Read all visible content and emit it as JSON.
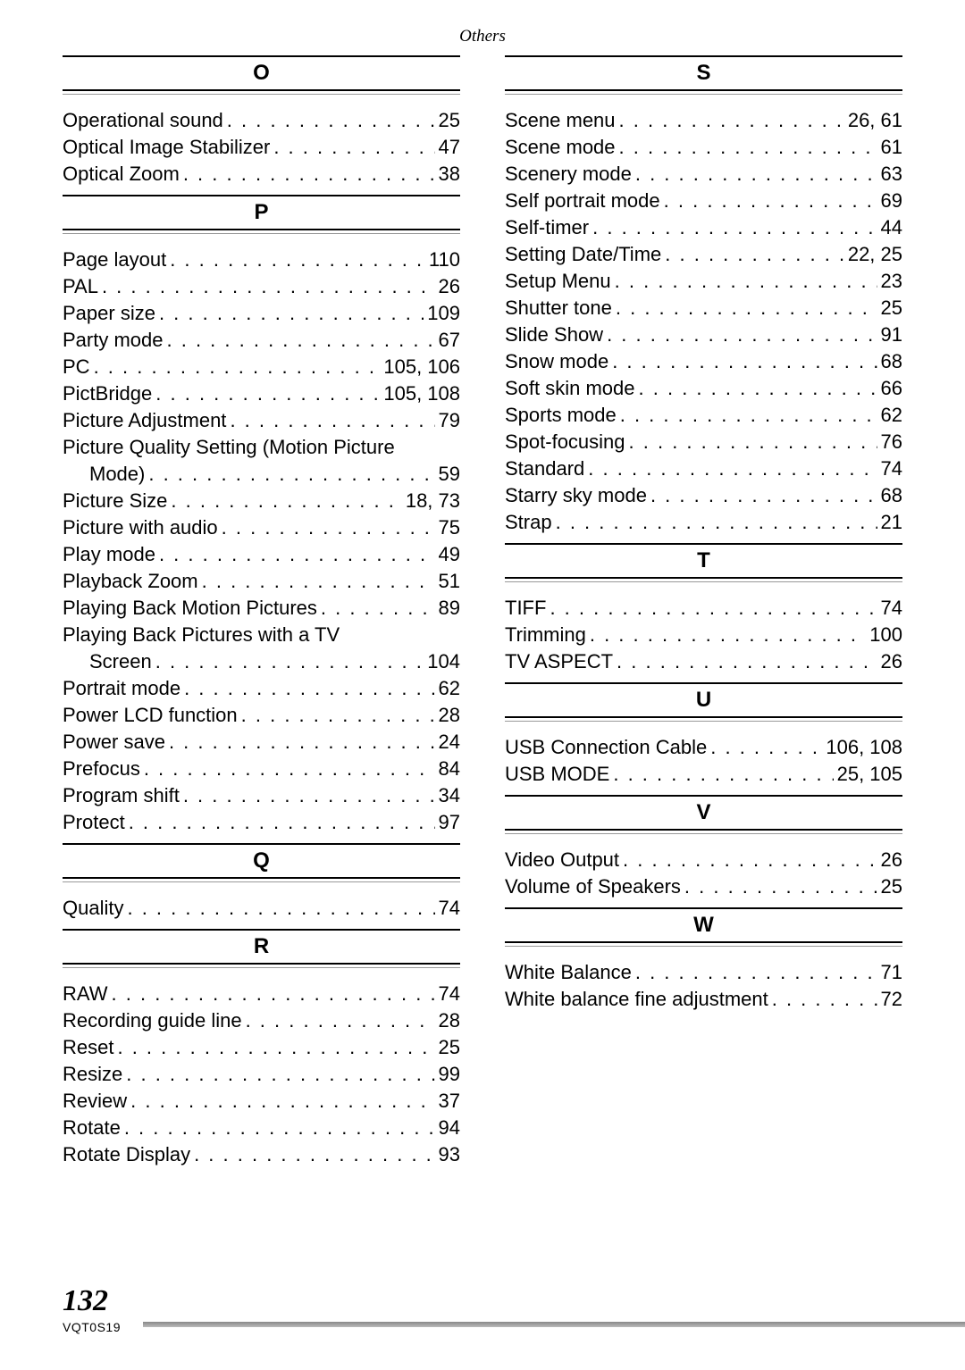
{
  "header": "Others",
  "page_number": "132",
  "doc_code": "VQT0S19",
  "left": [
    {
      "letter": "O",
      "items": [
        {
          "term": "Operational sound",
          "pages": "25"
        },
        {
          "term": "Optical Image Stabilizer",
          "pages": "47"
        },
        {
          "term": "Optical Zoom",
          "pages": "38"
        }
      ]
    },
    {
      "letter": "P",
      "items": [
        {
          "term": "Page layout",
          "pages": "110"
        },
        {
          "term": "PAL",
          "pages": "26"
        },
        {
          "term": "Paper size",
          "pages": "109"
        },
        {
          "term": "Party mode",
          "pages": "67"
        },
        {
          "term": "PC",
          "pages": "105, 106"
        },
        {
          "term": "PictBridge",
          "pages": "105, 108"
        },
        {
          "term": "Picture Adjustment",
          "pages": "79"
        },
        {
          "term": "Picture Quality Setting (Motion Picture",
          "cont": "Mode)",
          "pages": "59",
          "wrap": true
        },
        {
          "term": "Picture Size",
          "pages": "18, 73"
        },
        {
          "term": "Picture with audio",
          "pages": "75"
        },
        {
          "term": "Play mode",
          "pages": "49"
        },
        {
          "term": "Playback Zoom",
          "pages": "51"
        },
        {
          "term": "Playing Back Motion Pictures",
          "pages": "89"
        },
        {
          "term": "Playing Back Pictures with a TV",
          "cont": "Screen",
          "pages": "104",
          "wrap": true
        },
        {
          "term": "Portrait mode",
          "pages": "62"
        },
        {
          "term": "Power LCD function",
          "pages": "28"
        },
        {
          "term": "Power save",
          "pages": "24"
        },
        {
          "term": "Prefocus",
          "pages": "84"
        },
        {
          "term": "Program shift",
          "pages": "34"
        },
        {
          "term": "Protect",
          "pages": "97"
        }
      ]
    },
    {
      "letter": "Q",
      "items": [
        {
          "term": "Quality",
          "pages": "74"
        }
      ]
    },
    {
      "letter": "R",
      "items": [
        {
          "term": "RAW",
          "pages": "74"
        },
        {
          "term": "Recording guide line",
          "pages": "28"
        },
        {
          "term": "Reset",
          "pages": "25"
        },
        {
          "term": "Resize",
          "pages": "99"
        },
        {
          "term": "Review",
          "pages": "37"
        },
        {
          "term": "Rotate",
          "pages": "94"
        },
        {
          "term": "Rotate Display",
          "pages": "93"
        }
      ]
    }
  ],
  "right": [
    {
      "letter": "S",
      "items": [
        {
          "term": "Scene menu",
          "pages": "26, 61"
        },
        {
          "term": "Scene mode",
          "pages": "61"
        },
        {
          "term": "Scenery mode",
          "pages": "63"
        },
        {
          "term": "Self portrait mode",
          "pages": "69"
        },
        {
          "term": "Self-timer",
          "pages": "44"
        },
        {
          "term": "Setting Date/Time",
          "pages": "22, 25"
        },
        {
          "term": "Setup Menu",
          "pages": "23"
        },
        {
          "term": "Shutter tone",
          "pages": "25"
        },
        {
          "term": "Slide Show",
          "pages": "91"
        },
        {
          "term": "Snow mode",
          "pages": "68"
        },
        {
          "term": "Soft skin mode",
          "pages": "66"
        },
        {
          "term": "Sports mode",
          "pages": "62"
        },
        {
          "term": "Spot-focusing",
          "pages": "76"
        },
        {
          "term": "Standard",
          "pages": "74"
        },
        {
          "term": "Starry sky mode",
          "pages": "68"
        },
        {
          "term": "Strap",
          "pages": "21"
        }
      ]
    },
    {
      "letter": "T",
      "items": [
        {
          "term": "TIFF",
          "pages": "74"
        },
        {
          "term": "Trimming",
          "pages": "100"
        },
        {
          "term": "TV ASPECT",
          "pages": "26"
        }
      ]
    },
    {
      "letter": "U",
      "items": [
        {
          "term": "USB Connection Cable",
          "pages": "106, 108"
        },
        {
          "term": "USB MODE",
          "pages": "25, 105"
        }
      ]
    },
    {
      "letter": "V",
      "items": [
        {
          "term": "Video Output",
          "pages": "26"
        },
        {
          "term": "Volume of Speakers",
          "pages": "25"
        }
      ]
    },
    {
      "letter": "W",
      "items": [
        {
          "term": "White Balance",
          "pages": "71"
        },
        {
          "term": "White balance fine adjustment",
          "pages": "72"
        }
      ]
    }
  ]
}
